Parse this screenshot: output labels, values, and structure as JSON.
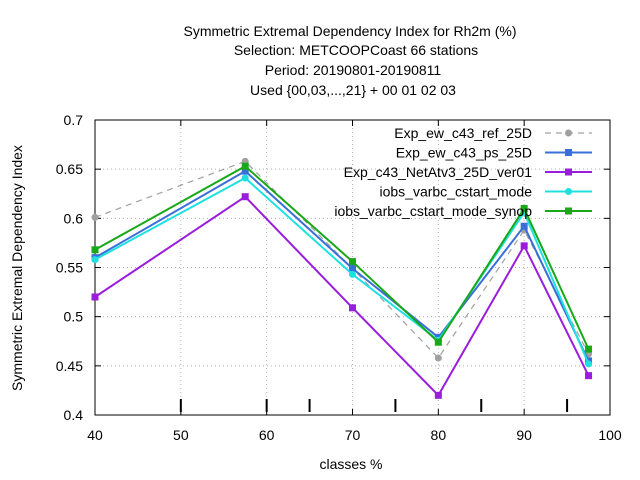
{
  "chart_data": {
    "type": "line",
    "title_lines": [
      "Symmetric Extremal Dependency Index  for Rh2m (%)",
      "Selection: METCOOPCoast     66 stations",
      "Period: 20190801-20190811",
      "Used {00,03,...,21} + 00 01 02 03"
    ],
    "xlabel": "classes %",
    "ylabel": "Symmetric Extremal Dependency Index",
    "xlim": [
      40,
      100
    ],
    "ylim": [
      0.4,
      0.7
    ],
    "x_ticks": [
      "40",
      "50",
      "60",
      "70",
      "80",
      "90",
      "100"
    ],
    "y_ticks": [
      "0.4",
      "0.45",
      "0.5",
      "0.55",
      "0.6",
      "0.65",
      "0.7"
    ],
    "grid": true,
    "legend_position": "top-right",
    "x": [
      40,
      57.5,
      70,
      80,
      90,
      97.5
    ],
    "minor_ticks_x": [
      50,
      60,
      65,
      75,
      85,
      95
    ],
    "series": [
      {
        "name": "Exp_ew_c43_ref_25D",
        "color": "#a0a0a0",
        "dashed": true,
        "marker": "circle",
        "values": [
          0.601,
          0.658,
          0.549,
          0.458,
          0.588,
          0.462
        ]
      },
      {
        "name": "Exp_ew_c43_ps_25D",
        "color": "#3a6fd8",
        "dashed": false,
        "marker": "square",
        "values": [
          0.56,
          0.648,
          0.549,
          0.479,
          0.592,
          0.455
        ]
      },
      {
        "name": "Exp_c43_NetAtv3_25D_ver01",
        "color": "#9a1cdc",
        "dashed": false,
        "marker": "square",
        "values": [
          0.52,
          0.622,
          0.509,
          0.42,
          0.572,
          0.44
        ]
      },
      {
        "name": "iobs_varbc_cstart_mode",
        "color": "#1fe0e0",
        "dashed": false,
        "marker": "circle",
        "values": [
          0.558,
          0.641,
          0.543,
          0.476,
          0.606,
          0.452
        ]
      },
      {
        "name": "iobs_varbc_cstart_mode_synop",
        "color": "#18a818",
        "dashed": false,
        "marker": "square",
        "values": [
          0.568,
          0.653,
          0.556,
          0.474,
          0.61,
          0.467
        ]
      }
    ]
  }
}
